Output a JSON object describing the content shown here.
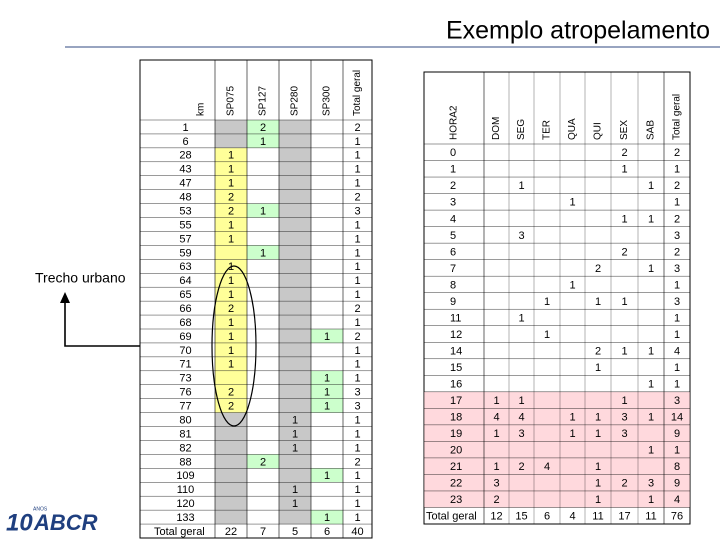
{
  "header": {
    "title": "Exemplo atropelamento"
  },
  "annotation": "Trecho urbano",
  "logo": {
    "number": "10",
    "small": "ANOS",
    "brand": "ABCR"
  },
  "left_table": {
    "columns": [
      "km",
      "SP075",
      "SP127",
      "SP280",
      "SP300",
      "Total geral"
    ],
    "rows": [
      [
        1,
        null,
        2,
        null,
        null,
        2
      ],
      [
        6,
        null,
        1,
        null,
        null,
        1
      ],
      [
        28,
        1,
        null,
        null,
        null,
        1
      ],
      [
        43,
        1,
        null,
        null,
        null,
        1
      ],
      [
        47,
        1,
        null,
        null,
        null,
        1
      ],
      [
        48,
        2,
        null,
        null,
        null,
        2
      ],
      [
        53,
        2,
        1,
        null,
        null,
        3
      ],
      [
        55,
        1,
        null,
        null,
        null,
        1
      ],
      [
        57,
        1,
        null,
        null,
        null,
        1
      ],
      [
        59,
        null,
        1,
        null,
        null,
        1
      ],
      [
        63,
        1,
        null,
        null,
        null,
        1
      ],
      [
        64,
        1,
        null,
        null,
        null,
        1
      ],
      [
        65,
        1,
        null,
        null,
        null,
        1
      ],
      [
        66,
        2,
        null,
        null,
        null,
        2
      ],
      [
        68,
        1,
        null,
        null,
        null,
        1
      ],
      [
        69,
        1,
        null,
        null,
        1,
        2
      ],
      [
        70,
        1,
        null,
        null,
        null,
        1
      ],
      [
        71,
        1,
        null,
        null,
        null,
        1
      ],
      [
        73,
        null,
        null,
        null,
        1,
        1
      ],
      [
        76,
        2,
        null,
        null,
        1,
        3
      ],
      [
        77,
        2,
        null,
        null,
        1,
        3
      ],
      [
        80,
        null,
        null,
        1,
        null,
        1
      ],
      [
        81,
        null,
        null,
        1,
        null,
        1
      ],
      [
        82,
        null,
        null,
        1,
        null,
        1
      ],
      [
        88,
        null,
        2,
        null,
        null,
        2
      ],
      [
        109,
        null,
        null,
        null,
        1,
        1
      ],
      [
        110,
        null,
        null,
        1,
        null,
        1
      ],
      [
        120,
        null,
        null,
        1,
        null,
        1
      ],
      [
        133,
        null,
        null,
        null,
        1,
        1
      ]
    ],
    "total": [
      "Total geral",
      22,
      7,
      5,
      6,
      40
    ]
  },
  "right_table": {
    "columns": [
      "HORA2",
      "DOM",
      "SEG",
      "TER",
      "QUA",
      "QUI",
      "SEX",
      "SAB",
      "Total geral"
    ],
    "rows": [
      [
        0,
        null,
        null,
        null,
        null,
        null,
        2,
        null,
        2
      ],
      [
        1,
        null,
        null,
        null,
        null,
        null,
        1,
        null,
        1
      ],
      [
        2,
        null,
        1,
        null,
        null,
        null,
        null,
        1,
        2
      ],
      [
        3,
        null,
        null,
        null,
        1,
        null,
        null,
        null,
        1
      ],
      [
        4,
        null,
        null,
        null,
        null,
        null,
        1,
        1,
        2
      ],
      [
        5,
        null,
        3,
        null,
        null,
        null,
        null,
        null,
        3
      ],
      [
        6,
        null,
        null,
        null,
        null,
        null,
        2,
        null,
        2
      ],
      [
        7,
        null,
        null,
        null,
        null,
        2,
        null,
        1,
        3
      ],
      [
        8,
        null,
        null,
        null,
        1,
        null,
        null,
        null,
        1
      ],
      [
        9,
        null,
        null,
        1,
        null,
        1,
        1,
        null,
        3
      ],
      [
        11,
        null,
        1,
        null,
        null,
        null,
        null,
        null,
        1
      ],
      [
        12,
        null,
        null,
        1,
        null,
        null,
        null,
        null,
        1
      ],
      [
        14,
        null,
        null,
        null,
        null,
        2,
        1,
        1,
        4
      ],
      [
        15,
        null,
        null,
        null,
        null,
        1,
        null,
        null,
        1
      ],
      [
        16,
        null,
        null,
        null,
        null,
        null,
        null,
        1,
        1
      ],
      [
        17,
        1,
        1,
        null,
        null,
        null,
        1,
        null,
        3
      ],
      [
        18,
        4,
        4,
        null,
        1,
        1,
        3,
        1,
        14
      ],
      [
        19,
        1,
        3,
        null,
        1,
        1,
        3,
        null,
        9
      ],
      [
        20,
        null,
        null,
        null,
        null,
        null,
        null,
        1,
        1
      ],
      [
        21,
        1,
        2,
        4,
        null,
        1,
        null,
        null,
        8
      ],
      [
        22,
        3,
        null,
        null,
        null,
        1,
        2,
        3,
        9
      ],
      [
        23,
        2,
        null,
        null,
        null,
        1,
        null,
        1,
        4
      ]
    ],
    "total": [
      "Total geral",
      12,
      15,
      6,
      4,
      11,
      17,
      11,
      76
    ]
  }
}
